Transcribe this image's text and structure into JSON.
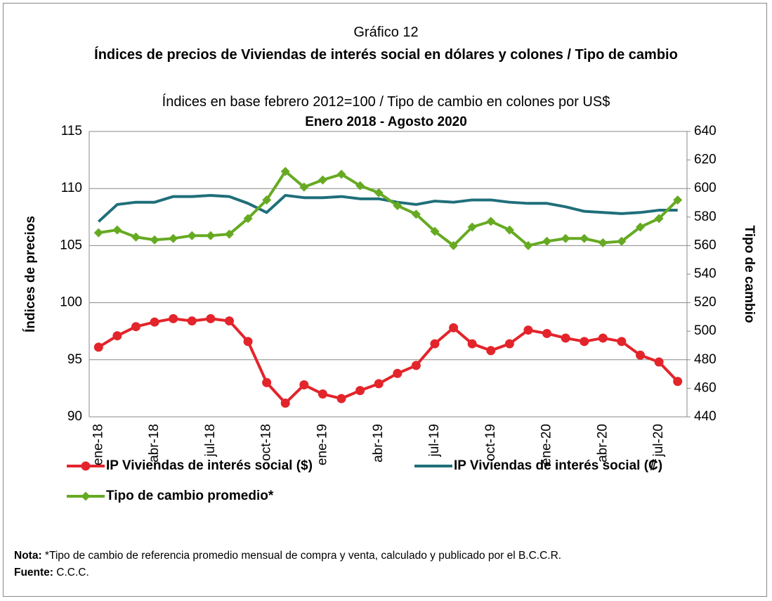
{
  "chart_data": {
    "type": "line",
    "pretitle": "Gráfico 12",
    "title": "Índices de precios de Viviendas de interés social en dólares y colones / Tipo de cambio",
    "subtitle": "Índices en base febrero 2012=100 / Tipo de cambio en colones por US$",
    "period": "Enero 2018 - Agosto 2020",
    "ylabel": "Índices de precios",
    "y2label": "Tipo de cambio",
    "categories": [
      "ene-18",
      null,
      null,
      "abr-18",
      null,
      null,
      "jul-18",
      null,
      null,
      "oct-18",
      null,
      null,
      "ene-19",
      null,
      null,
      "abr-19",
      null,
      null,
      "jul-19",
      null,
      null,
      "oct-19",
      null,
      null,
      "ene-20",
      null,
      null,
      "abr-20",
      null,
      null,
      "jul-20",
      null
    ],
    "series": [
      {
        "name": "IP Viviendas de interés social ($)",
        "color": "#e3242b",
        "marker": "circle",
        "values": [
          96.1,
          97.1,
          97.9,
          98.3,
          98.6,
          98.4,
          98.6,
          98.4,
          96.6,
          93.0,
          91.2,
          92.8,
          92.0,
          91.6,
          92.3,
          92.9,
          93.8,
          94.5,
          96.4,
          97.8,
          96.4,
          95.8,
          96.4,
          97.6,
          97.3,
          96.9,
          96.6,
          96.9,
          96.6,
          95.4,
          94.8,
          93.1
        ]
      },
      {
        "name": "IP Viviendas de interés social (₡)",
        "color": "#1f6f7a",
        "marker": "none",
        "values": [
          107.1,
          108.6,
          108.8,
          108.8,
          109.3,
          109.3,
          109.4,
          109.3,
          108.7,
          107.9,
          109.4,
          109.2,
          109.2,
          109.3,
          109.1,
          109.1,
          108.8,
          108.6,
          108.9,
          108.8,
          109.0,
          109.0,
          108.8,
          108.7,
          108.7,
          108.4,
          108.0,
          107.9,
          107.8,
          107.9,
          108.1,
          108.1
        ]
      },
      {
        "name": "Tipo de cambio promedio*",
        "color": "#66aa22",
        "marker": "diamond",
        "axis": "y2",
        "values": [
          569,
          571,
          566,
          564,
          565,
          567,
          567,
          568,
          579,
          592,
          612,
          601,
          606,
          610,
          602,
          597,
          588,
          582,
          570,
          560,
          573,
          577,
          571,
          560,
          563,
          565,
          565,
          562,
          563,
          573,
          579,
          592
        ]
      }
    ],
    "ylim": [
      90,
      115
    ],
    "yticks": [
      90,
      95,
      100,
      105,
      110,
      115
    ],
    "y2lim": [
      440,
      640
    ],
    "y2ticks": [
      440,
      460,
      480,
      500,
      520,
      540,
      560,
      580,
      600,
      620,
      640
    ],
    "grid": true,
    "note_label": "Nota:",
    "note_text": " *Tipo de cambio de referencia promedio mensual de compra y venta, calculado y publicado por el B.C.C.R.",
    "source_label": "Fuente:",
    "source_text": " C.C.C."
  }
}
